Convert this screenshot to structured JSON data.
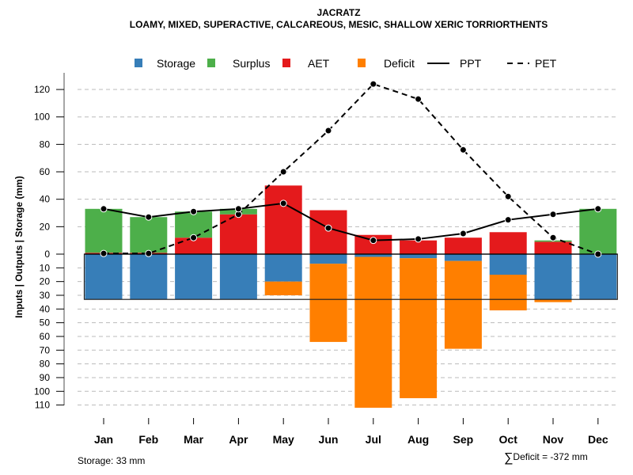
{
  "chart_data": {
    "type": "bar",
    "title": "JACRATZ",
    "subtitle": "LOAMY, MIXED, SUPERACTIVE, CALCAREOUS, MESIC, SHALLOW XERIC TORRIORTHENTS",
    "ylabel": "Inputs | Outputs | Storage    (mm)",
    "xlabel": "",
    "categories": [
      "Jan",
      "Feb",
      "Mar",
      "Apr",
      "May",
      "Jun",
      "Jul",
      "Aug",
      "Sep",
      "Oct",
      "Nov",
      "Dec"
    ],
    "y_ticks_positive": [
      0,
      20,
      40,
      60,
      80,
      100,
      120
    ],
    "y_ticks_negative": [
      10,
      20,
      30,
      40,
      50,
      60,
      70,
      80,
      90,
      100,
      110
    ],
    "ylim": [
      -110,
      125
    ],
    "grid": true,
    "legend_position": "top",
    "legend": [
      {
        "name": "Storage",
        "kind": "box",
        "color": "#377EB8"
      },
      {
        "name": "Surplus",
        "kind": "box",
        "color": "#4DAF4A"
      },
      {
        "name": "AET",
        "kind": "box",
        "color": "#E41A1C"
      },
      {
        "name": "Deficit",
        "kind": "box",
        "color": "#FF7F00"
      },
      {
        "name": "PPT",
        "kind": "solid-line",
        "color": "#000000"
      },
      {
        "name": "PET",
        "kind": "dashed-line",
        "color": "#000000"
      }
    ],
    "series": [
      {
        "name": "AET",
        "values": [
          1,
          1,
          12,
          29,
          50,
          32,
          14,
          10,
          12,
          16,
          9,
          0
        ]
      },
      {
        "name": "Surplus",
        "values": [
          32,
          26,
          19,
          4,
          0,
          0,
          0,
          0,
          0,
          0,
          1,
          33
        ]
      },
      {
        "name": "Storage",
        "values": [
          33,
          33,
          33,
          33,
          20,
          7,
          2,
          3,
          5,
          15,
          33,
          33
        ]
      },
      {
        "name": "Deficit",
        "values": [
          0,
          0,
          0,
          0,
          10,
          57,
          110,
          102,
          64,
          26,
          2,
          0
        ]
      },
      {
        "name": "PPT",
        "values": [
          33,
          27,
          31,
          33,
          37,
          19,
          10,
          11,
          15,
          25,
          29,
          33
        ]
      },
      {
        "name": "PET",
        "values": [
          0.5,
          0.5,
          12,
          29,
          60,
          90,
          124,
          113,
          76,
          42,
          12,
          0
        ]
      }
    ],
    "storage_capacity": 33,
    "annotations": {
      "storage": "Storage: 33 mm",
      "deficit_sum": "Deficit = -372 mm",
      "deficit_symbol": "∑"
    }
  }
}
